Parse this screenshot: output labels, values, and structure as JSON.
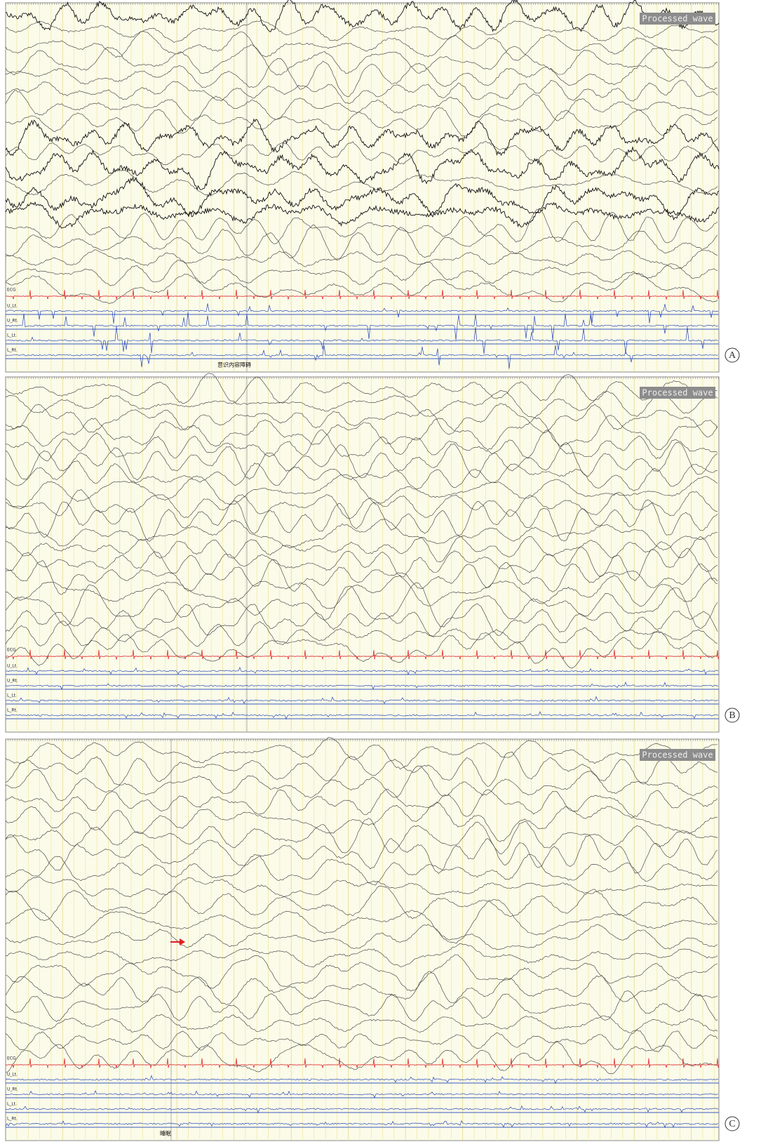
{
  "panels": [
    {
      "label": "A",
      "badge": "Processed wave",
      "channels": [
        "ECG",
        "U_Lt.",
        "U_Rt.",
        "L_Lt.",
        "L_Rt."
      ],
      "annotation": "意识内容障碍"
    },
    {
      "label": "B",
      "badge": "Processed wave",
      "channels": [
        "ECG",
        "U_Lt.",
        "U_Rt.",
        "L_Lt.",
        "L_Rt."
      ]
    },
    {
      "label": "C",
      "badge": "Processed wave",
      "channels": [
        "ECG",
        "U_Lt.",
        "U_Rt.",
        "L_Lt.",
        "L_Rt."
      ],
      "annotation": "睡眠"
    }
  ]
}
